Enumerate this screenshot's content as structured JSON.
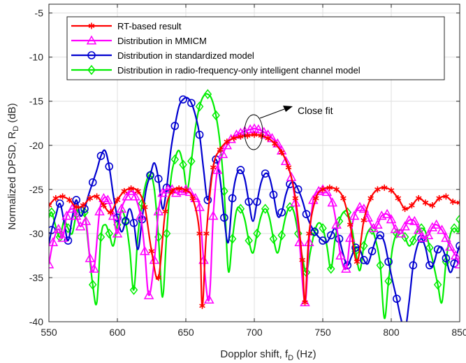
{
  "chart_data": {
    "type": "line",
    "title": "",
    "xlabel": "Dopplor shift, f",
    "xlabel_sub": "D",
    "xlabel_unit": " (Hz)",
    "ylabel": "Normalized DPSD, R",
    "ylabel_sub": "D",
    "ylabel_unit": " (dB)",
    "xlim": [
      550,
      850
    ],
    "ylim": [
      -40,
      -4
    ],
    "xticks": [
      550,
      600,
      650,
      700,
      750,
      800,
      850
    ],
    "yticks": [
      -40,
      -35,
      -30,
      -25,
      -20,
      -15,
      -10,
      -5
    ],
    "grid": true,
    "legend_position": "top-left",
    "annotation": "Close fit",
    "series": [
      {
        "name": "RT-based result",
        "color": "#ff0000",
        "marker": "asterisk",
        "x": [
          550,
          555,
          560,
          565,
          570,
          575,
          580,
          585,
          590,
          595,
          600,
          605,
          610,
          615,
          620,
          625,
          630,
          635,
          640,
          645,
          650,
          655,
          660,
          662,
          665,
          670,
          675,
          680,
          685,
          690,
          695,
          700,
          705,
          710,
          715,
          720,
          725,
          730,
          735,
          737,
          740,
          745,
          750,
          755,
          760,
          765,
          770,
          775,
          780,
          785,
          790,
          795,
          800,
          805,
          810,
          815,
          820,
          825,
          830,
          835,
          840,
          845,
          850
        ],
        "y": [
          -26.8,
          -26.0,
          -25.8,
          -26.2,
          -27.0,
          -26.8,
          -26.0,
          -25.8,
          -26.8,
          -27.6,
          -26.2,
          -25.2,
          -24.9,
          -25.2,
          -27.0,
          -32.0,
          -35.0,
          -27.5,
          -25.2,
          -24.9,
          -25.1,
          -26.0,
          -30.0,
          -38.2,
          -30.0,
          -22.5,
          -20.5,
          -19.6,
          -19.2,
          -19.0,
          -18.9,
          -18.8,
          -18.9,
          -19.2,
          -19.8,
          -20.8,
          -22.5,
          -26.0,
          -33.0,
          -37.8,
          -30.0,
          -26.0,
          -25.0,
          -24.8,
          -25.0,
          -26.0,
          -29.0,
          -33.2,
          -28.5,
          -26.0,
          -25.0,
          -24.8,
          -25.1,
          -26.0,
          -27.2,
          -26.8,
          -26.0,
          -26.5,
          -26.8,
          -26.0,
          -25.8,
          -26.4,
          -26.5
        ]
      },
      {
        "name": "Distribution in MMICM",
        "color": "#ff00ff",
        "marker": "triangle",
        "x": [
          550,
          553,
          557,
          560,
          563,
          567,
          570,
          573,
          577,
          580,
          583,
          587,
          590,
          593,
          597,
          600,
          603,
          607,
          610,
          613,
          617,
          620,
          623,
          627,
          630,
          633,
          637,
          640,
          643,
          647,
          650,
          653,
          657,
          660,
          663,
          667,
          670,
          673,
          677,
          680,
          683,
          687,
          690,
          693,
          697,
          700,
          703,
          707,
          710,
          713,
          717,
          720,
          723,
          727,
          730,
          733,
          737,
          740,
          743,
          747,
          750,
          753,
          757,
          760,
          763,
          767,
          770,
          773,
          777,
          780,
          783,
          787,
          790,
          793,
          797,
          800,
          803,
          807,
          810,
          813,
          817,
          820,
          823,
          827,
          830,
          833,
          837,
          840,
          843,
          847,
          850
        ],
        "y": [
          -33.5,
          -31.0,
          -29.5,
          -30.5,
          -28.0,
          -27.2,
          -28.0,
          -29.2,
          -28.6,
          -32.8,
          -34.0,
          -27.5,
          -26.0,
          -26.2,
          -28.0,
          -30.0,
          -27.2,
          -25.8,
          -25.2,
          -25.8,
          -28.0,
          -32.0,
          -37.0,
          -33.0,
          -27.5,
          -25.4,
          -25.0,
          -25.0,
          -25.4,
          -25.2,
          -25.0,
          -25.3,
          -26.0,
          -27.0,
          -33.0,
          -37.5,
          -28.0,
          -22.8,
          -21.0,
          -20.0,
          -19.3,
          -18.8,
          -18.6,
          -18.4,
          -18.2,
          -18.1,
          -18.2,
          -18.5,
          -18.8,
          -19.2,
          -19.8,
          -20.6,
          -21.8,
          -23.6,
          -26.5,
          -31.0,
          -37.8,
          -31.0,
          -26.2,
          -25.2,
          -25.0,
          -25.3,
          -26.5,
          -29.0,
          -32.5,
          -34.0,
          -30.5,
          -28.0,
          -27.0,
          -27.2,
          -28.2,
          -29.4,
          -29.0,
          -28.0,
          -27.8,
          -28.4,
          -29.5,
          -30.0,
          -29.2,
          -28.5,
          -28.6,
          -29.6,
          -30.5,
          -30.2,
          -29.3,
          -29.0,
          -29.6,
          -30.5,
          -31.5,
          -32.5,
          -33.5
        ]
      },
      {
        "name": "Distribution in standardized model",
        "color": "#0000d0",
        "marker": "circle",
        "x": [
          550,
          552,
          555,
          558,
          561,
          564,
          567,
          570,
          573,
          576,
          579,
          582,
          585,
          588,
          591,
          594,
          597,
          600,
          603,
          606,
          609,
          612,
          615,
          618,
          621,
          624,
          627,
          630,
          633,
          636,
          639,
          642,
          645,
          648,
          651,
          654,
          657,
          660,
          663,
          666,
          669,
          672,
          675,
          678,
          681,
          684,
          687,
          690,
          693,
          696,
          699,
          702,
          705,
          708,
          711,
          714,
          717,
          720,
          723,
          726,
          729,
          732,
          735,
          738,
          741,
          744,
          747,
          750,
          753,
          756,
          759,
          762,
          765,
          768,
          771,
          774,
          777,
          780,
          783,
          786,
          789,
          792,
          795,
          798,
          801,
          804,
          807,
          810,
          813,
          816,
          819,
          822,
          825,
          828,
          831,
          834,
          837,
          840,
          843,
          846,
          849,
          850
        ],
        "y": [
          -31.2,
          -29.6,
          -28.0,
          -26.6,
          -28.6,
          -30.8,
          -28.2,
          -26.2,
          -28.0,
          -27.2,
          -25.6,
          -24.2,
          -22.8,
          -21.2,
          -20.6,
          -22.4,
          -25.6,
          -28.2,
          -29.8,
          -28.6,
          -27.2,
          -28.8,
          -31.8,
          -28.4,
          -25.0,
          -23.4,
          -22.0,
          -23.8,
          -27.2,
          -24.8,
          -20.6,
          -17.8,
          -15.6,
          -14.8,
          -14.6,
          -15.2,
          -16.6,
          -18.8,
          -22.8,
          -26.2,
          -23.2,
          -21.6,
          -23.8,
          -28.2,
          -31.0,
          -26.0,
          -23.4,
          -22.8,
          -23.8,
          -26.4,
          -28.6,
          -26.4,
          -24.2,
          -23.2,
          -23.6,
          -25.6,
          -28.0,
          -27.6,
          -25.6,
          -24.4,
          -24.2,
          -25.0,
          -26.2,
          -27.8,
          -29.0,
          -29.8,
          -30.4,
          -30.8,
          -31.0,
          -30.2,
          -29.4,
          -30.6,
          -32.4,
          -33.6,
          -32.6,
          -31.6,
          -31.8,
          -33.0,
          -33.4,
          -32.0,
          -30.6,
          -30.2,
          -31.0,
          -33.2,
          -35.4,
          -37.4,
          -39.6,
          -41.0,
          -37.8,
          -33.6,
          -31.4,
          -30.6,
          -31.6,
          -33.6,
          -33.4,
          -31.8,
          -31.6,
          -32.8,
          -34.4,
          -33.4,
          -31.8,
          -31.4
        ]
      },
      {
        "name": "Distribution in radio-frequency-only intelligent channel model",
        "color": "#00ee00",
        "marker": "diamond",
        "x": [
          550,
          552,
          555,
          558,
          561,
          564,
          567,
          570,
          573,
          576,
          579,
          582,
          585,
          588,
          591,
          594,
          597,
          600,
          603,
          606,
          609,
          612,
          615,
          618,
          621,
          624,
          627,
          630,
          633,
          636,
          639,
          642,
          645,
          648,
          651,
          654,
          657,
          660,
          663,
          666,
          669,
          672,
          675,
          678,
          681,
          684,
          687,
          690,
          693,
          696,
          699,
          702,
          705,
          708,
          711,
          714,
          717,
          720,
          723,
          726,
          729,
          732,
          735,
          738,
          741,
          744,
          747,
          750,
          753,
          756,
          759,
          762,
          765,
          768,
          771,
          774,
          777,
          780,
          783,
          786,
          789,
          792,
          795,
          798,
          801,
          804,
          807,
          810,
          813,
          816,
          819,
          822,
          825,
          828,
          831,
          834,
          837,
          840,
          843,
          846,
          849,
          850
        ],
        "y": [
          -28.2,
          -27.6,
          -29.2,
          -30.4,
          -28.6,
          -29.4,
          -30.0,
          -27.8,
          -27.0,
          -27.6,
          -31.6,
          -35.8,
          -37.8,
          -30.4,
          -29.0,
          -30.0,
          -31.4,
          -29.0,
          -27.4,
          -28.6,
          -31.8,
          -36.4,
          -30.2,
          -26.6,
          -24.2,
          -23.4,
          -25.0,
          -30.4,
          -37.2,
          -30.0,
          -24.0,
          -21.6,
          -20.6,
          -22.2,
          -25.0,
          -21.8,
          -18.0,
          -15.6,
          -14.4,
          -14.2,
          -14.8,
          -16.6,
          -19.8,
          -25.2,
          -34.2,
          -30.6,
          -27.4,
          -27.2,
          -28.4,
          -30.8,
          -32.2,
          -30.0,
          -28.0,
          -27.2,
          -28.2,
          -30.6,
          -32.2,
          -30.2,
          -28.0,
          -27.0,
          -27.6,
          -30.0,
          -32.6,
          -34.4,
          -32.0,
          -29.8,
          -28.8,
          -29.4,
          -31.4,
          -34.0,
          -30.6,
          -28.6,
          -27.6,
          -27.6,
          -29.2,
          -32.0,
          -34.2,
          -31.4,
          -29.8,
          -29.6,
          -31.0,
          -33.6,
          -39.6,
          -35.4,
          -31.6,
          -30.0,
          -29.6,
          -30.4,
          -31.4,
          -30.8,
          -29.8,
          -29.4,
          -29.8,
          -31.6,
          -33.6,
          -35.8,
          -37.8,
          -33.2,
          -30.2,
          -29.4,
          -29.8,
          -28.4
        ]
      }
    ]
  }
}
